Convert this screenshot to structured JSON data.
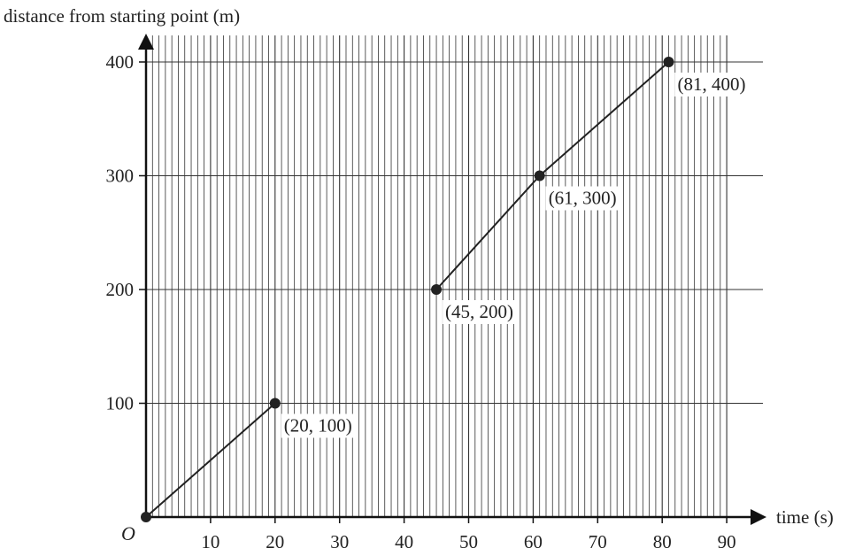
{
  "chart_data": {
    "type": "line",
    "title": "",
    "ylabel": "distance from starting point (m)",
    "xlabel": "time (s)",
    "origin_label": "O",
    "xlim": [
      0,
      90
    ],
    "ylim": [
      0,
      400
    ],
    "x_ticks": [
      "10",
      "20",
      "30",
      "40",
      "50",
      "60",
      "70",
      "80",
      "90"
    ],
    "y_ticks": [
      "100",
      "200",
      "300",
      "400"
    ],
    "grid": true,
    "segments": [
      {
        "points": [
          [
            0,
            0
          ],
          [
            20,
            100
          ]
        ]
      },
      {
        "points": [
          [
            45,
            200
          ],
          [
            61,
            300
          ],
          [
            81,
            400
          ]
        ]
      }
    ],
    "point_labels": [
      {
        "x": 20,
        "y": 100,
        "text": "(20, 100)"
      },
      {
        "x": 45,
        "y": 200,
        "text": "(45, 200)"
      },
      {
        "x": 61,
        "y": 300,
        "text": "(61, 300)"
      },
      {
        "x": 81,
        "y": 400,
        "text": "(81, 400)"
      }
    ],
    "colors": {
      "line": "#222222",
      "grid": "#333333"
    }
  }
}
